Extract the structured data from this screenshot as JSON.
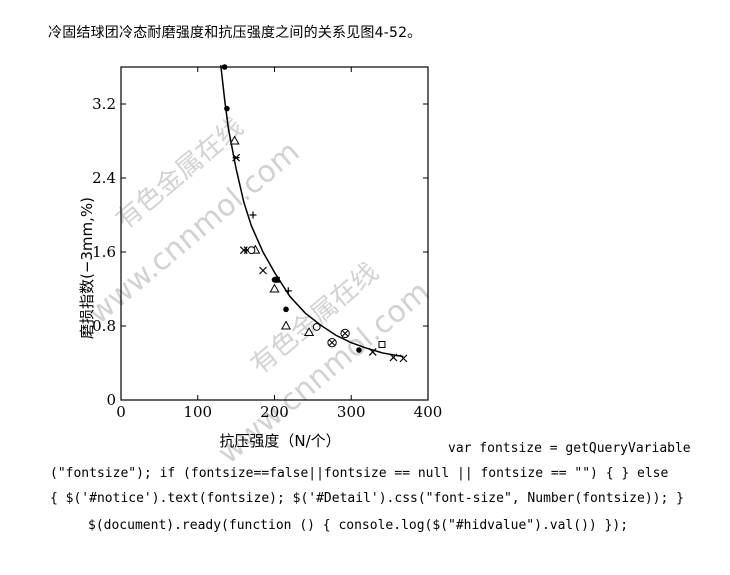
{
  "intro_text": "冷固结球团冷态耐磨强度和抗压强度之间的关系见图4-52。",
  "watermarks": [
    "有色金属在线",
    "www.cnnmol.com",
    "有色金属在线",
    "www.cnnmol.com"
  ],
  "code_lines": [
    "var fontsize = getQueryVariable",
    "(\"fontsize\"); if (fontsize==false||fontsize == null || fontsize == \"\") { } else",
    "{ $('#notice').text(fontsize); $('#Detail').css(\"font-size\", Number(fontsize)); }",
    "$(document).ready(function () { console.log($(\"#hidvalue\").val()) });"
  ],
  "chart_data": {
    "type": "scatter",
    "xlabel": "抗压强度（N/个）",
    "ylabel": "磨损指数(−3mm,%)",
    "xlim": [
      0,
      400
    ],
    "ylim": [
      0,
      3.6
    ],
    "x_ticks": [
      "0",
      "100",
      "200",
      "300",
      "400"
    ],
    "y_ticks": [
      "0",
      "0.8",
      "1.6",
      "2.4",
      "3.2"
    ],
    "series": [
      {
        "marker": "dot",
        "points": [
          [
            135,
            3.6
          ],
          [
            138,
            3.15
          ],
          [
            200,
            1.3
          ],
          [
            215,
            0.98
          ],
          [
            310,
            0.54
          ]
        ]
      },
      {
        "marker": "triangle",
        "points": [
          [
            148,
            2.8
          ],
          [
            175,
            1.62
          ],
          [
            200,
            1.2
          ],
          [
            215,
            0.8
          ],
          [
            245,
            0.73
          ]
        ]
      },
      {
        "marker": "star",
        "points": [
          [
            150,
            2.62
          ],
          [
            165,
            1.62
          ]
        ]
      },
      {
        "marker": "plus",
        "points": [
          [
            172,
            2.0
          ],
          [
            218,
            1.18
          ]
        ]
      },
      {
        "marker": "cross",
        "points": [
          [
            160,
            1.62
          ],
          [
            185,
            1.4
          ],
          [
            328,
            0.52
          ],
          [
            355,
            0.46
          ],
          [
            368,
            0.45
          ]
        ]
      },
      {
        "marker": "circle",
        "points": [
          [
            170,
            1.62
          ],
          [
            255,
            0.79
          ]
        ]
      },
      {
        "marker": "square",
        "points": [
          [
            203,
            1.3
          ]
        ]
      },
      {
        "marker": "square-open",
        "points": [
          [
            340,
            0.6
          ]
        ]
      },
      {
        "marker": "circle-cross",
        "points": [
          [
            275,
            0.62
          ],
          [
            292,
            0.72
          ]
        ]
      }
    ],
    "curve": [
      [
        130,
        3.62
      ],
      [
        135,
        3.25
      ],
      [
        140,
        2.93
      ],
      [
        150,
        2.5
      ],
      [
        160,
        2.14
      ],
      [
        170,
        1.88
      ],
      [
        185,
        1.6
      ],
      [
        200,
        1.38
      ],
      [
        220,
        1.12
      ],
      [
        240,
        0.94
      ],
      [
        260,
        0.81
      ],
      [
        280,
        0.7
      ],
      [
        300,
        0.62
      ],
      [
        320,
        0.56
      ],
      [
        340,
        0.51
      ],
      [
        360,
        0.48
      ],
      [
        368,
        0.47
      ]
    ]
  }
}
